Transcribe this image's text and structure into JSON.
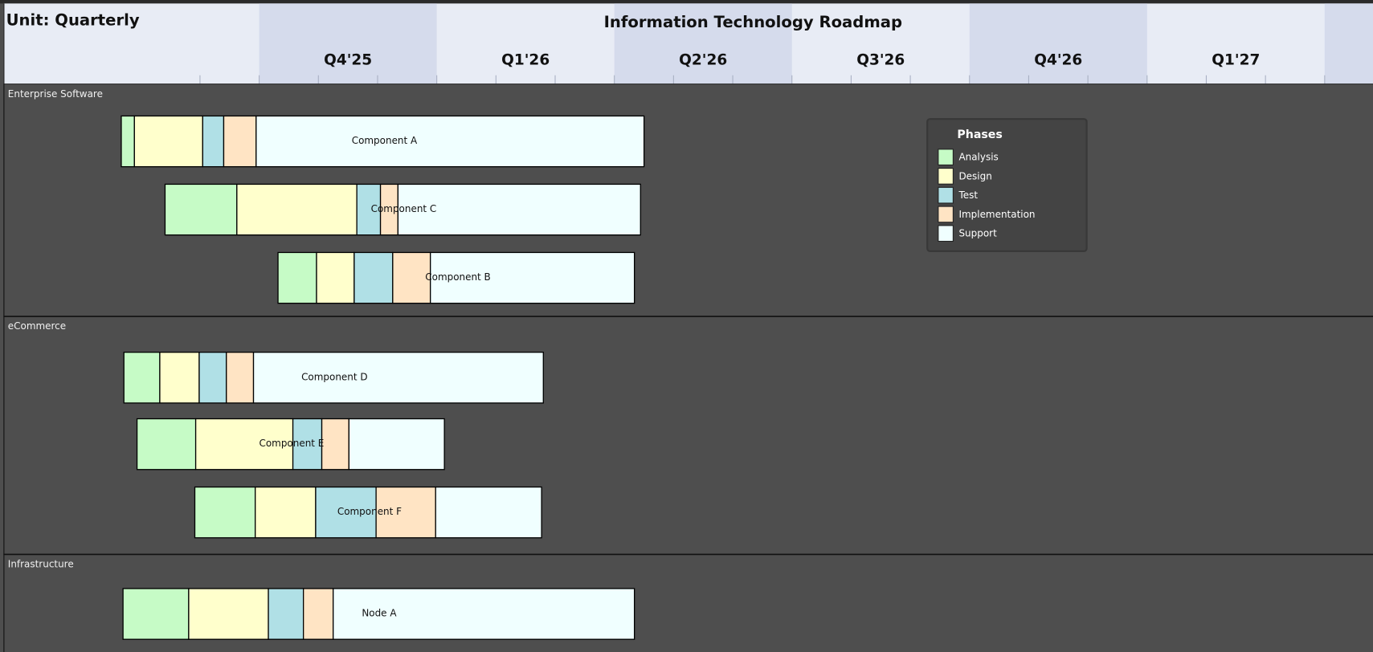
{
  "header": {
    "unit": "Unit: Quarterly",
    "title": "Information Technology Roadmap",
    "periods": [
      "Q4'25",
      "Q1'26",
      "Q2'26",
      "Q3'26",
      "Q4'26",
      "Q1'27"
    ]
  },
  "lanes": [
    {
      "name": "Enterprise Software",
      "items": [
        "Component A",
        "Component C",
        "Component B"
      ]
    },
    {
      "name": "eCommerce",
      "items": [
        "Component D",
        "Component E",
        "Component F"
      ]
    },
    {
      "name": "Infrastructure",
      "items": [
        "Node A"
      ]
    }
  ],
  "legend": {
    "title": "Phases",
    "items": [
      {
        "label": "Analysis",
        "color": "#c6fbc6"
      },
      {
        "label": "Design",
        "color": "#ffffcc"
      },
      {
        "label": "Test",
        "color": "#b0e0e6"
      },
      {
        "label": "Implementation",
        "color": "#ffe4c4"
      },
      {
        "label": "Support",
        "color": "#f0ffff"
      }
    ]
  }
}
